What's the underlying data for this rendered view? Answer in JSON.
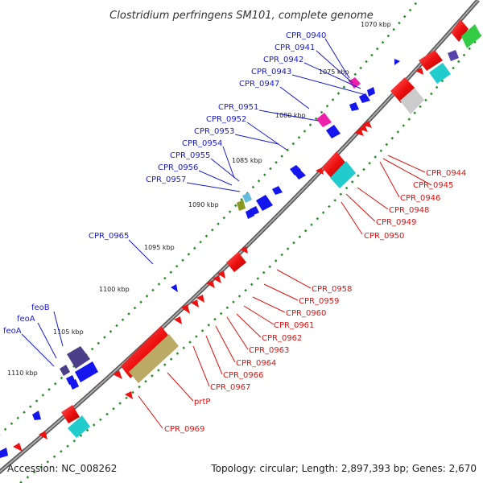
{
  "title": "Clostridium perfringens SM101, complete genome",
  "accession": "Accession: NC_008262",
  "summary": "Topology: circular; Length: 2,897,393 bp; Genes: 2,670",
  "kbp_ticks": [
    "1070 kbp",
    "1075 kbp",
    "1080 kbp",
    "1085 kbp",
    "1090 kbp",
    "1095 kbp",
    "1100 kbp",
    "1105 kbp",
    "1110 kbp"
  ],
  "top_labels": [
    "CPR_0940",
    "CPR_0941",
    "CPR_0942",
    "CPR_0943",
    "CPR_0947",
    "CPR_0951",
    "CPR_0952",
    "CPR_0953",
    "CPR_0954",
    "CPR_0955",
    "CPR_0956",
    "CPR_0957",
    "CPR_0965",
    "feoB",
    "feoA",
    "feoA"
  ],
  "bottom_labels": [
    "CPR_0944",
    "CPR_0945",
    "CPR_0946",
    "CPR_0948",
    "CPR_0949",
    "CPR_0950",
    "CPR_0958",
    "CPR_0959",
    "CPR_0960",
    "CPR_0961",
    "CPR_0962",
    "CPR_0963",
    "CPR_0964",
    "CPR_0966",
    "CPR_0967",
    "prtP",
    "CPR_0969"
  ],
  "colors": {
    "forward_label": "#1a1acc",
    "reverse_label": "#dd1111",
    "forward_gene": "#1515ee",
    "reverse_gene": "#ee1111",
    "backbone": "#888888",
    "tick_dots": "#2a8a2a"
  }
}
